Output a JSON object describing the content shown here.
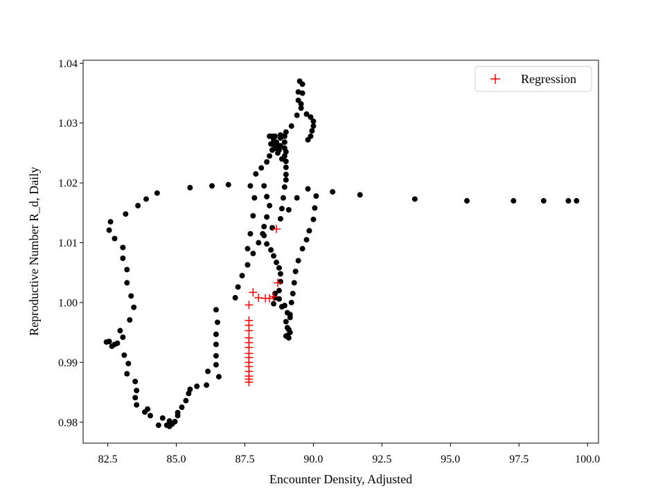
{
  "chart_data": {
    "type": "scatter",
    "xlabel": "Encounter Density, Adjusted",
    "ylabel": "Reproductive Number R_d, Daily",
    "xlim": [
      81.6,
      100.4
    ],
    "ylim": [
      0.9765,
      1.0405
    ],
    "xticks": [
      82.5,
      85.0,
      87.5,
      90.0,
      92.5,
      95.0,
      97.5,
      100.0
    ],
    "xtick_labels": [
      "82.5",
      "85.0",
      "87.5",
      "90.0",
      "92.5",
      "95.0",
      "97.5",
      "100.0"
    ],
    "yticks": [
      0.98,
      0.99,
      1.0,
      1.01,
      1.02,
      1.03,
      1.04
    ],
    "ytick_labels": [
      "0.98",
      "0.99",
      "1.00",
      "1.01",
      "1.02",
      "1.03",
      "1.04"
    ],
    "grid": false,
    "legend": {
      "position": "top-right",
      "entries": [
        "Regression"
      ]
    },
    "series": [
      {
        "marker": "dot",
        "color": "#000000",
        "points": [
          [
            99.6,
            1.017
          ],
          [
            99.3,
            1.017
          ],
          [
            98.4,
            1.017
          ],
          [
            97.3,
            1.017
          ],
          [
            95.6,
            1.017
          ],
          [
            93.7,
            1.0173
          ],
          [
            91.7,
            1.018
          ],
          [
            90.7,
            1.0185
          ],
          [
            89.8,
            1.019
          ],
          [
            89.4,
            1.0175
          ],
          [
            89.1,
            1.0155
          ],
          [
            88.8,
            1.014
          ],
          [
            88.5,
            1.0125
          ],
          [
            88.2,
            1.0112
          ],
          [
            88.0,
            1.01
          ],
          [
            87.8,
            1.0082
          ],
          [
            87.6,
            1.0063
          ],
          [
            87.4,
            1.0045
          ],
          [
            87.25,
            1.0026
          ],
          [
            87.15,
            1.0008
          ],
          [
            87.6,
            1.009
          ],
          [
            87.7,
            1.0115
          ],
          [
            87.8,
            1.0145
          ],
          [
            87.85,
            1.0175
          ],
          [
            87.7,
            1.0195
          ],
          [
            87.9,
            1.0215
          ],
          [
            88.1,
            1.0225
          ],
          [
            88.3,
            1.0235
          ],
          [
            88.4,
            1.0245
          ],
          [
            88.5,
            1.0255
          ],
          [
            88.65,
            1.0265
          ],
          [
            88.8,
            1.0275
          ],
          [
            89.0,
            1.0285
          ],
          [
            89.2,
            1.0295
          ],
          [
            89.4,
            1.0313
          ],
          [
            89.55,
            1.0332
          ],
          [
            89.6,
            1.035
          ],
          [
            89.6,
            1.0365
          ],
          [
            89.5,
            1.037
          ],
          [
            89.45,
            1.0352
          ],
          [
            89.45,
            1.0338
          ],
          [
            89.55,
            1.0325
          ],
          [
            89.75,
            1.0315
          ],
          [
            89.9,
            1.031
          ],
          [
            90.0,
            1.0303
          ],
          [
            90.0,
            1.0295
          ],
          [
            89.95,
            1.0287
          ],
          [
            89.9,
            1.0278
          ],
          [
            89.8,
            1.0272
          ],
          [
            88.95,
            1.0278
          ],
          [
            88.8,
            1.028
          ],
          [
            88.6,
            1.0278
          ],
          [
            88.55,
            1.0272
          ],
          [
            88.5,
            1.0265
          ],
          [
            88.75,
            1.0262
          ],
          [
            88.95,
            1.0258
          ],
          [
            89.0,
            1.0252
          ],
          [
            88.95,
            1.0245
          ],
          [
            88.85,
            1.024
          ],
          [
            88.75,
            1.0255
          ],
          [
            88.6,
            1.0258
          ],
          [
            88.5,
            1.0255
          ],
          [
            88.45,
            1.0265
          ],
          [
            88.4,
            1.0278
          ],
          [
            88.5,
            1.0278
          ],
          [
            88.65,
            1.0268
          ],
          [
            88.7,
            1.025
          ],
          [
            88.8,
            1.0262
          ],
          [
            88.95,
            1.0268
          ],
          [
            89.0,
            1.0236
          ],
          [
            89.0,
            1.0226
          ],
          [
            89.0,
            1.0214
          ],
          [
            89.0,
            1.0205
          ],
          [
            88.95,
            1.0193
          ],
          [
            88.9,
            1.0175
          ],
          [
            88.85,
            1.0157
          ],
          [
            88.2,
            1.0195
          ],
          [
            88.3,
            1.0177
          ],
          [
            88.4,
            1.0162
          ],
          [
            88.3,
            1.0143
          ],
          [
            88.2,
            1.0127
          ],
          [
            88.15,
            1.0115
          ],
          [
            88.3,
            1.0098
          ],
          [
            88.45,
            1.0088
          ],
          [
            88.55,
            1.0078
          ],
          [
            88.65,
            1.0067
          ],
          [
            88.75,
            1.0058
          ],
          [
            88.8,
            1.0048
          ],
          [
            88.8,
            1.0035
          ],
          [
            88.75,
            1.002
          ],
          [
            88.6,
            1.0008
          ],
          [
            88.55,
            0.9998
          ],
          [
            88.6,
            1.0015
          ],
          [
            88.75,
            1.0006
          ],
          [
            88.95,
            0.9995
          ],
          [
            89.05,
            0.9983
          ],
          [
            89.15,
            0.9975
          ],
          [
            88.85,
            0.9993
          ],
          [
            89.0,
            0.9968
          ],
          [
            89.05,
            0.9958
          ],
          [
            89.15,
            0.995
          ],
          [
            89.1,
            0.9941
          ],
          [
            89.05,
            0.9945
          ],
          [
            89.0,
            0.9944
          ],
          [
            89.1,
            0.9955
          ],
          [
            89.15,
            0.998
          ],
          [
            89.2,
            1.0
          ],
          [
            89.25,
            1.0015
          ],
          [
            89.3,
            1.0033
          ],
          [
            89.35,
            1.0052
          ],
          [
            89.45,
            1.007
          ],
          [
            89.6,
            1.009
          ],
          [
            89.75,
            1.0105
          ],
          [
            89.85,
            1.012
          ],
          [
            90.0,
            1.0139
          ],
          [
            90.05,
            1.0158
          ],
          [
            90.1,
            1.0178
          ],
          [
            86.9,
            1.0197
          ],
          [
            86.3,
            1.0195
          ],
          [
            85.5,
            1.0192
          ],
          [
            84.3,
            1.0183
          ],
          [
            83.9,
            1.0173
          ],
          [
            83.6,
            1.0162
          ],
          [
            83.15,
            1.0148
          ],
          [
            82.6,
            1.0135
          ],
          [
            82.55,
            1.0121
          ],
          [
            82.75,
            1.0107
          ],
          [
            83.05,
            1.0092
          ],
          [
            83.05,
            1.0074
          ],
          [
            83.2,
            1.0055
          ],
          [
            83.2,
            1.0033
          ],
          [
            83.35,
            1.0011
          ],
          [
            83.45,
            0.9992
          ],
          [
            83.3,
            0.9971
          ],
          [
            82.95,
            0.9953
          ],
          [
            83.05,
            0.9942
          ],
          [
            82.85,
            0.9932
          ],
          [
            82.65,
            0.9927
          ],
          [
            82.45,
            0.9934
          ],
          [
            82.55,
            0.9935
          ],
          [
            82.75,
            0.993
          ],
          [
            83.1,
            0.9912
          ],
          [
            83.25,
            0.9898
          ],
          [
            83.2,
            0.9881
          ],
          [
            83.5,
            0.9868
          ],
          [
            83.55,
            0.9853
          ],
          [
            83.5,
            0.9841
          ],
          [
            83.55,
            0.9829
          ],
          [
            83.85,
            0.9817
          ],
          [
            83.95,
            0.9822
          ],
          [
            84.05,
            0.9811
          ],
          [
            84.35,
            0.9795
          ],
          [
            84.5,
            0.9807
          ],
          [
            84.75,
            0.9802
          ],
          [
            84.85,
            0.9797
          ],
          [
            84.95,
            0.9801
          ],
          [
            85.05,
            0.9811
          ],
          [
            85.05,
            0.9816
          ],
          [
            85.2,
            0.9825
          ],
          [
            85.35,
            0.9836
          ],
          [
            85.45,
            0.9848
          ],
          [
            85.5,
            0.9855
          ],
          [
            85.75,
            0.986
          ],
          [
            86.1,
            0.9862
          ],
          [
            86.15,
            0.9885
          ],
          [
            86.45,
            0.9896
          ],
          [
            86.45,
            0.9911
          ],
          [
            86.45,
            0.993
          ],
          [
            86.45,
            0.9947
          ],
          [
            86.5,
            0.9967
          ],
          [
            86.45,
            0.9988
          ],
          [
            86.55,
            0.9876
          ],
          [
            84.65,
            0.9795
          ],
          [
            84.75,
            0.9793
          ]
        ]
      },
      {
        "name": "Regression",
        "marker": "plus",
        "color": "#ff0000",
        "points": [
          [
            88.65,
            1.0123
          ],
          [
            88.7,
            1.0033
          ],
          [
            87.8,
            1.0017
          ],
          [
            88.0,
            1.0008
          ],
          [
            88.25,
            1.0007
          ],
          [
            88.4,
            1.0007
          ],
          [
            88.55,
            1.001
          ],
          [
            87.65,
            0.9996
          ],
          [
            87.65,
            0.997
          ],
          [
            87.65,
            0.9962
          ],
          [
            87.65,
            0.9953
          ],
          [
            87.65,
            0.9941
          ],
          [
            87.65,
            0.9933
          ],
          [
            87.65,
            0.9925
          ],
          [
            87.65,
            0.9915
          ],
          [
            87.65,
            0.9908
          ],
          [
            87.65,
            0.99
          ],
          [
            87.65,
            0.9893
          ],
          [
            87.65,
            0.9885
          ],
          [
            87.65,
            0.9877
          ],
          [
            87.65,
            0.9872
          ],
          [
            87.65,
            0.9867
          ]
        ]
      }
    ]
  }
}
